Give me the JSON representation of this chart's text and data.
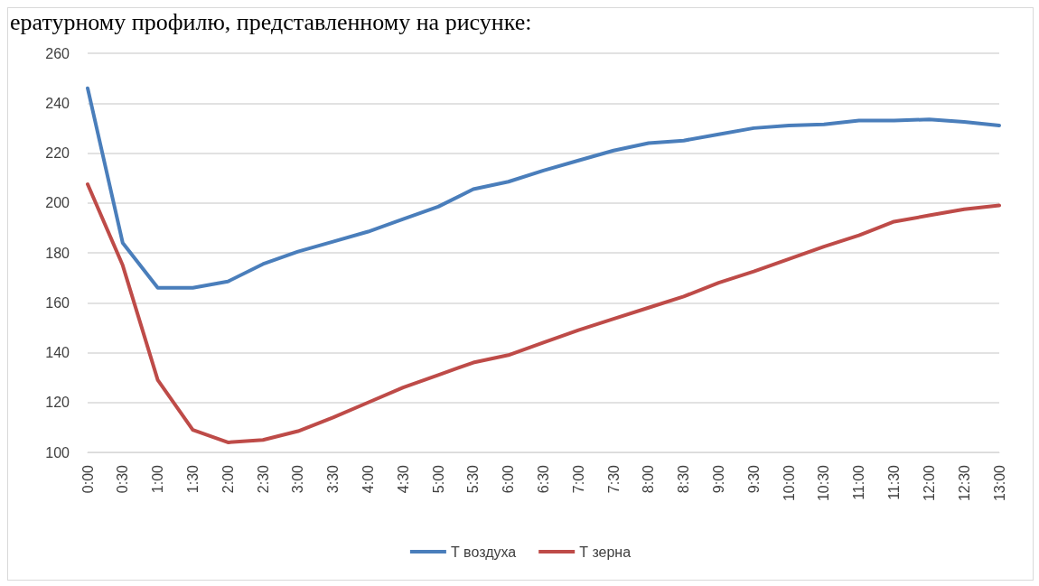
{
  "chart_data": {
    "type": "line",
    "annotations": [
      "ературному профилю, представленному на рисунке:"
    ],
    "categories": [
      "0:00",
      "0:30",
      "1:00",
      "1:30",
      "2:00",
      "2:30",
      "3:00",
      "3:30",
      "4:00",
      "4:30",
      "5:00",
      "5:30",
      "6:00",
      "6:30",
      "7:00",
      "7:30",
      "8:00",
      "8:30",
      "9:00",
      "9:30",
      "10:00",
      "10:30",
      "11:00",
      "11:30",
      "12:00",
      "12:30",
      "13:00"
    ],
    "series": [
      {
        "name": "Т воздуха",
        "color": "#4a7ebb",
        "values": [
          246,
          184,
          166,
          166,
          168.5,
          175.5,
          180.5,
          184.5,
          188.5,
          193.5,
          198.5,
          205.5,
          208.5,
          213,
          217,
          221,
          224,
          225,
          227.5,
          230,
          231,
          231.5,
          233,
          233,
          233.5,
          232.5,
          231
        ]
      },
      {
        "name": "Т зерна",
        "color": "#be4b48",
        "values": [
          207.5,
          175,
          129,
          109,
          104,
          105,
          108.5,
          114,
          120,
          126,
          131,
          136,
          139,
          144,
          149,
          153.5,
          158,
          162.5,
          168,
          172.5,
          177.5,
          182.5,
          187,
          192.5,
          195,
          197.5,
          199
        ]
      }
    ],
    "ylim": [
      100,
      260
    ],
    "yticks": [
      100,
      120,
      140,
      160,
      180,
      200,
      220,
      240,
      260
    ],
    "grid": "y",
    "legend": "bottom",
    "marker": "none",
    "line_style": "solid"
  }
}
